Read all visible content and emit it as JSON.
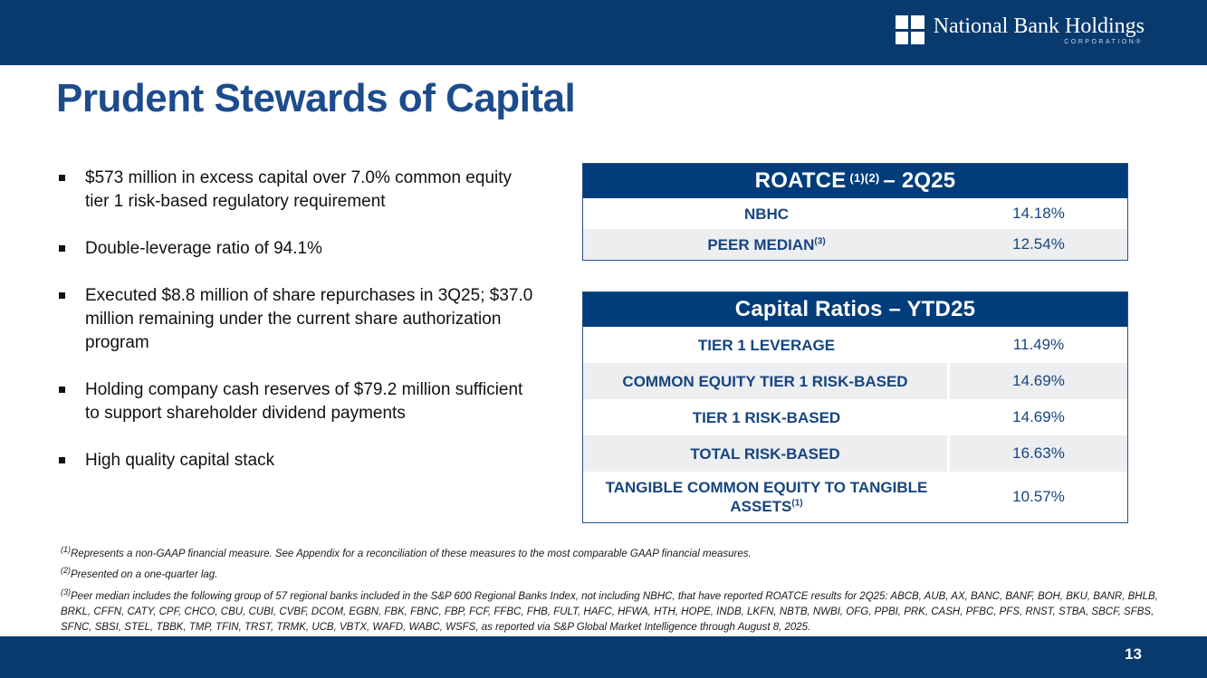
{
  "header": {
    "logo_icon": "window-grid-icon",
    "logo_name": "National Bank Holdings",
    "logo_subtitle": "CORPORATION®"
  },
  "page_title": "Prudent Stewards of Capital",
  "bullets": [
    "$573 million in excess capital over 7.0% common equity tier 1 risk-based regulatory requirement",
    "Double-leverage ratio of 94.1%",
    "Executed $8.8 million of share repurchases in 3Q25; $37.0 million remaining under the current share authorization program",
    "Holding company cash reserves of $79.2 million sufficient to support shareholder dividend payments",
    "High quality capital stack"
  ],
  "tables": [
    {
      "title_main": "ROATCE",
      "title_sup": "(1)(2)",
      "title_tail": "– 2Q25",
      "rows": [
        {
          "label": "NBHC",
          "sup": "",
          "value": "14.18%"
        },
        {
          "label": "PEER MEDIAN",
          "sup": "(3)",
          "value": "12.54%"
        }
      ]
    },
    {
      "title_main": "Capital Ratios – YTD25",
      "title_sup": "",
      "title_tail": "",
      "rows": [
        {
          "label": "TIER 1 LEVERAGE",
          "sup": "",
          "value": "11.49%"
        },
        {
          "label": "COMMON EQUITY TIER 1 RISK-BASED",
          "sup": "",
          "value": "14.69%"
        },
        {
          "label": "TIER 1 RISK-BASED",
          "sup": "",
          "value": "14.69%"
        },
        {
          "label": "TOTAL RISK-BASED",
          "sup": "",
          "value": "16.63%"
        },
        {
          "label": "TANGIBLE COMMON EQUITY TO TANGIBLE ASSETS",
          "sup": "(1)",
          "value": "10.57%"
        }
      ]
    }
  ],
  "footnotes": [
    {
      "sup": "(1)",
      "text": "Represents a non-GAAP financial measure.  See Appendix for a reconciliation of these measures to the most comparable GAAP financial measures."
    },
    {
      "sup": "(2)",
      "text": "Presented on a one-quarter lag."
    },
    {
      "sup": "(3)",
      "text": "Peer median includes the following group of 57 regional banks included in the S&P 600 Regional Banks Index, not including NBHC, that have reported ROATCE results for 2Q25: ABCB, AUB, AX, BANC, BANF, BOH, BKU, BANR, BHLB, BRKL, CFFN, CATY, CPF, CHCO, CBU, CUBI, CVBF, DCOM, EGBN, FBK, FBNC, FBP, FCF, FFBC, FHB, FULT, HAFC, HFWA, HTH, HOPE, INDB, LKFN, NBTB, NWBI, OFG, PPBI, PRK, CASH, PFBC, PFS, RNST, STBA, SBCF, SFBS, SFNC, SBSI, STEL, TBBK, TMP, TFIN, TRST, TRMK, UCB, VBTX, WAFD, WABC, WSFS, as reported via S&P Global Market Intelligence through August 8, 2025."
    }
  ],
  "footer": {
    "page_number": "13"
  },
  "colors": {
    "bar_navy": "#093a6e",
    "table_header_navy": "#003d7a",
    "title_blue": "#1c4c8c",
    "table_text_blue": "#17457f",
    "stripe_gray": "#eceef0"
  }
}
